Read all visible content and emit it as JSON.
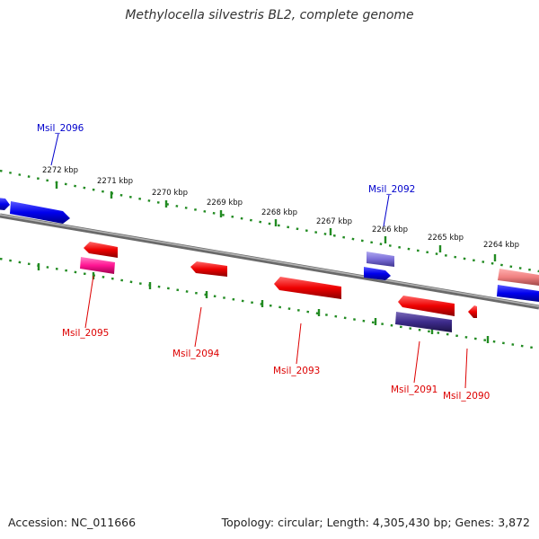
{
  "title": "Methylocella silvestris BL2, complete genome",
  "footer": {
    "accession": "Accession: NC_011666",
    "summary": "Topology: circular; Length: 4,305,430 bp; Genes: 3,872"
  },
  "colors": {
    "backbone": "#808080",
    "tick": "#228B22",
    "strand_plus_label": "#0000CC",
    "strand_minus_label": "#DD0000"
  },
  "kbp_ticks": [
    {
      "label": "2272 kbp"
    },
    {
      "label": "2271 kbp"
    },
    {
      "label": "2270 kbp"
    },
    {
      "label": "2269 kbp"
    },
    {
      "label": "2268 kbp"
    },
    {
      "label": "2267 kbp"
    },
    {
      "label": "2266 kbp"
    },
    {
      "label": "2265 kbp"
    },
    {
      "label": "2264 kbp"
    }
  ],
  "genes": [
    {
      "label": "Msil_2096",
      "strand": "+",
      "color": "#0000EE"
    },
    {
      "label": "Msil_2095",
      "strand": "-",
      "color": "#FF1493"
    },
    {
      "label": "Msil_2094",
      "strand": "-",
      "color": "#EE0000"
    },
    {
      "label": "Msil_2093",
      "strand": "-",
      "color": "#EE0000"
    },
    {
      "label": "Msil_2092",
      "strand": "+",
      "color": "#6A5ACD"
    },
    {
      "label": "Msil_2091",
      "strand": "-",
      "color": "#3D2B8B"
    },
    {
      "label": "Msil_2090",
      "strand": "-",
      "color": "#EE0000"
    }
  ]
}
